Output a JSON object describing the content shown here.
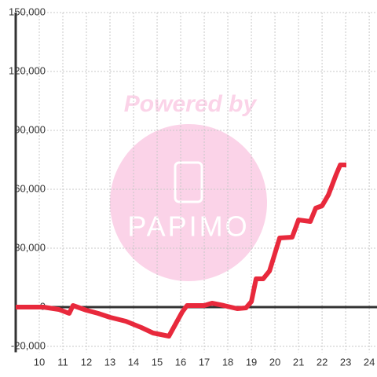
{
  "chart_data": {
    "type": "line",
    "watermark": {
      "title": "Powered by",
      "brand": "PAPIMO"
    },
    "x": [
      9,
      10.17,
      10.83,
      11.27,
      11.43,
      12,
      12.5,
      13,
      13.67,
      14.33,
      14.83,
      15.5,
      15.83,
      16.07,
      16.27,
      17,
      17.33,
      17.83,
      18.4,
      18.77,
      19,
      19.2,
      19.5,
      19.77,
      20.2,
      20.73,
      21,
      21.5,
      21.73,
      22,
      22.27,
      22.6,
      22.77,
      23.03
    ],
    "values": [
      0,
      0,
      -1200,
      -3200,
      800,
      -1600,
      -3200,
      -5200,
      -7200,
      -10400,
      -13200,
      -14800,
      -7600,
      -2400,
      800,
      800,
      2000,
      800,
      -800,
      -400,
      2800,
      14400,
      14400,
      18400,
      35200,
      35600,
      44400,
      43600,
      50400,
      51600,
      57200,
      67600,
      72400,
      72400
    ],
    "color": "#e8293c",
    "xlim": [
      9,
      24.33
    ],
    "xticks": [
      10,
      11,
      12,
      13,
      14,
      15,
      16,
      17,
      18,
      19,
      20,
      21,
      22,
      23,
      24
    ],
    "ylim": [
      -23000,
      150000
    ],
    "yticks": [
      {
        "value": -20000,
        "label": "-20,000"
      },
      0,
      {
        "value": 30000,
        "label": "30,000"
      },
      {
        "value": 60000,
        "label": "60,000"
      },
      {
        "value": 90000,
        "label": "90,000"
      },
      {
        "value": 120000,
        "label": "120,000"
      },
      {
        "value": 150000,
        "label": "150,000"
      }
    ],
    "grid": true
  }
}
